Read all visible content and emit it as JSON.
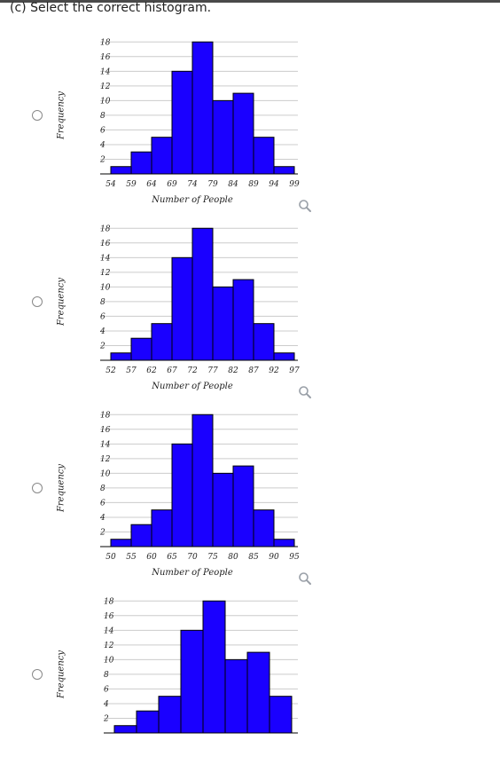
{
  "question": "(c) Select the correct histogram.",
  "ylabel": "Frequency",
  "icons": {
    "radio": "radio-button",
    "zoom": "magnifier-icon"
  },
  "colors": {
    "bar_fill": "#1a00ff",
    "bar_stroke": "#000000",
    "grid": "#cccccc"
  },
  "chart_data": [
    {
      "type": "bar",
      "xlabel": "Number of People",
      "ylabel": "Frequency",
      "y_ticks": [
        2,
        4,
        6,
        8,
        10,
        12,
        14,
        16,
        18
      ],
      "ylim": [
        0,
        19
      ],
      "bin_edges": [
        54,
        59,
        64,
        69,
        74,
        79,
        84,
        89,
        94,
        99
      ],
      "values": [
        1,
        3,
        5,
        14,
        18,
        10,
        11,
        5,
        1
      ]
    },
    {
      "type": "bar",
      "xlabel": "Number of People",
      "ylabel": "Frequency",
      "y_ticks": [
        2,
        4,
        6,
        8,
        10,
        12,
        14,
        16,
        18
      ],
      "ylim": [
        0,
        19
      ],
      "bin_edges": [
        52,
        57,
        62,
        67,
        72,
        77,
        82,
        87,
        92,
        97
      ],
      "values": [
        1,
        3,
        5,
        14,
        18,
        10,
        11,
        5,
        1
      ]
    },
    {
      "type": "bar",
      "xlabel": "Number of People",
      "ylabel": "Frequency",
      "y_ticks": [
        2,
        4,
        6,
        8,
        10,
        12,
        14,
        16,
        18
      ],
      "ylim": [
        0,
        19
      ],
      "bin_edges": [
        50,
        55,
        60,
        65,
        70,
        75,
        80,
        85,
        90,
        95
      ],
      "values": [
        1,
        3,
        5,
        14,
        18,
        10,
        11,
        5,
        1
      ]
    },
    {
      "type": "bar",
      "xlabel": "",
      "ylabel": "Frequency",
      "y_ticks": [
        2,
        4,
        6,
        8,
        10,
        12,
        14,
        16,
        18
      ],
      "ylim": [
        0,
        19
      ],
      "bin_edges": [],
      "values": [
        1,
        3,
        5,
        14,
        18,
        10,
        11,
        5
      ]
    }
  ]
}
